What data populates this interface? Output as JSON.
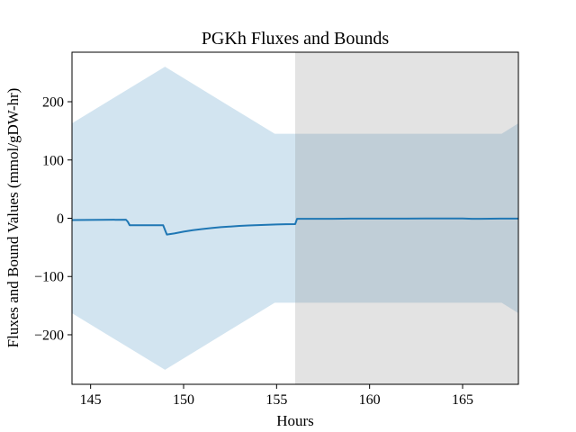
{
  "chart_data": {
    "type": "line",
    "title": "PGKh Fluxes and Bounds",
    "xlabel": "Hours",
    "ylabel": "Fluxes and Bound Values (mmol/gDW-hr)",
    "xlim": [
      144,
      168
    ],
    "ylim": [
      -285,
      285
    ],
    "xticks": [
      145,
      150,
      155,
      160,
      165
    ],
    "xtick_labels": [
      "145",
      "150",
      "155",
      "160",
      "165"
    ],
    "yticks": [
      200,
      100,
      0,
      -100,
      -200
    ],
    "ytick_labels": [
      "200",
      "100",
      "0",
      "−100",
      "−200"
    ],
    "grid": false,
    "colors": {
      "line": "#1f77b4",
      "band": "#1f77b4",
      "shade": "#808080"
    },
    "shaded_region": {
      "x_start": 156,
      "x_end": 168
    },
    "bounds": {
      "x": [
        144,
        149,
        154.9,
        167.1,
        168
      ],
      "upper": [
        163,
        260,
        145,
        145,
        163
      ],
      "lower": [
        -163,
        -260,
        -145,
        -145,
        -163
      ]
    },
    "series": [
      {
        "x": [
          144,
          146.9,
          147.0,
          147.1,
          148.9,
          149.0,
          149.1,
          149.5,
          150,
          150.5,
          151,
          151.5,
          152,
          152.5,
          153,
          153.5,
          154,
          154.5,
          155,
          155.5,
          156.0,
          156.1,
          157,
          158,
          159,
          160,
          161,
          162,
          163,
          164,
          165,
          165.5,
          166,
          167,
          168
        ],
        "y": [
          -3,
          -2.5,
          -6,
          -12,
          -12,
          -20,
          -28,
          -26,
          -23,
          -20.5,
          -18.5,
          -16.8,
          -15.3,
          -14.2,
          -13.2,
          -12.4,
          -11.8,
          -11.2,
          -10.7,
          -10.3,
          -10,
          -1,
          -1,
          -1,
          -0.5,
          -0.5,
          -0.5,
          -0.5,
          -0.3,
          -0.3,
          -0.3,
          -1,
          -1,
          -0.5,
          -0.5
        ]
      }
    ]
  }
}
